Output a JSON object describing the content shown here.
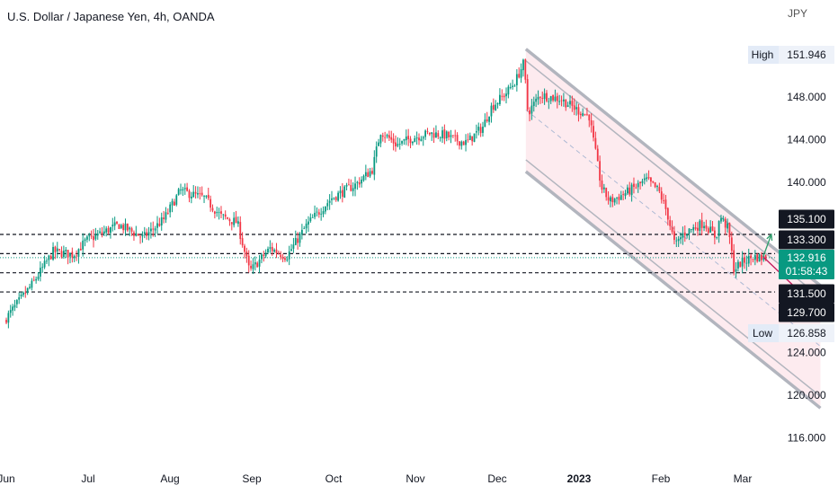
{
  "header": {
    "title": "U.S. Dollar / Japanese Yen, 4h, OANDA"
  },
  "axis": {
    "currency": "JPY"
  },
  "chart_data": {
    "type": "candlestick",
    "title": "U.S. Dollar / Japanese Yen, 4h, OANDA",
    "y_unit": "JPY",
    "ylim": [
      112.0,
      154.0
    ],
    "y_ticks": [
      "148.000",
      "144.000",
      "140.000",
      "124.000",
      "120.000",
      "116.000"
    ],
    "x_tick_labels": [
      "Jun",
      "Jul",
      "Aug",
      "Sep",
      "Oct",
      "Nov",
      "Dec",
      "2023",
      "Feb",
      "Mar"
    ],
    "high": {
      "label": "High",
      "value": "151.946"
    },
    "low": {
      "label": "Low",
      "value": "126.858"
    },
    "last_price": {
      "value": "132.916",
      "countdown": "01:58:43",
      "color": "#089981"
    },
    "levels": [
      {
        "value": "135.100"
      },
      {
        "value": "133.300"
      },
      {
        "value": "131.500"
      },
      {
        "value": "129.700"
      }
    ],
    "path": [
      [
        0.0,
        127.0
      ],
      [
        0.35,
        130.5
      ],
      [
        0.6,
        133.5
      ],
      [
        0.85,
        133.2
      ],
      [
        1.0,
        134.5
      ],
      [
        1.4,
        136.0
      ],
      [
        1.7,
        134.8
      ],
      [
        1.95,
        136.5
      ],
      [
        2.15,
        139.2
      ],
      [
        2.45,
        138.5
      ],
      [
        2.65,
        136.8
      ],
      [
        2.85,
        136.2
      ],
      [
        3.0,
        131.6
      ],
      [
        3.25,
        133.8
      ],
      [
        3.45,
        133.0
      ],
      [
        3.7,
        136.0
      ],
      [
        4.0,
        138.5
      ],
      [
        4.3,
        139.8
      ],
      [
        4.5,
        141.2
      ],
      [
        4.6,
        144.8
      ],
      [
        4.8,
        143.5
      ],
      [
        5.0,
        144.2
      ],
      [
        5.2,
        144.6
      ],
      [
        5.4,
        144.4
      ],
      [
        5.5,
        144.0
      ],
      [
        5.65,
        143.7
      ],
      [
        5.85,
        145.2
      ],
      [
        5.95,
        147.0
      ],
      [
        6.15,
        148.5
      ],
      [
        6.25,
        149.5
      ],
      [
        6.35,
        151.2
      ],
      [
        6.4,
        146.5
      ],
      [
        6.55,
        148.2
      ],
      [
        6.8,
        147.8
      ],
      [
        7.0,
        146.8
      ],
      [
        7.15,
        146.2
      ],
      [
        7.3,
        139.5
      ],
      [
        7.4,
        138.2
      ],
      [
        7.6,
        139.0
      ],
      [
        7.85,
        140.2
      ],
      [
        8.0,
        139.2
      ],
      [
        8.1,
        137.2
      ],
      [
        8.2,
        134.0
      ],
      [
        8.3,
        135.2
      ],
      [
        8.45,
        135.8
      ],
      [
        8.55,
        136.2
      ],
      [
        8.7,
        134.8
      ],
      [
        8.75,
        136.8
      ],
      [
        8.85,
        135.6
      ],
      [
        8.92,
        131.8
      ],
      [
        9.0,
        132.4
      ],
      [
        9.15,
        133.0
      ],
      [
        9.3,
        132.9
      ]
    ],
    "channel": {
      "start": [
        6.35,
        152.5
      ],
      "end": [
        9.95,
        130.3
      ],
      "lower_offset": -11.5,
      "inner_offset": 1.1,
      "midline_offset": -5.7,
      "fill": "#fce4ea",
      "line_color": "#b2b5be"
    },
    "projection": {
      "up_arrow": {
        "from": [
          9.25,
          133.0
        ],
        "to": [
          9.35,
          135.1
        ],
        "color": "#2e9e6b"
      },
      "down_arrow": {
        "from": [
          9.25,
          133.0
        ],
        "to": [
          9.7,
          129.7
        ],
        "color": "#c2185b"
      }
    }
  }
}
